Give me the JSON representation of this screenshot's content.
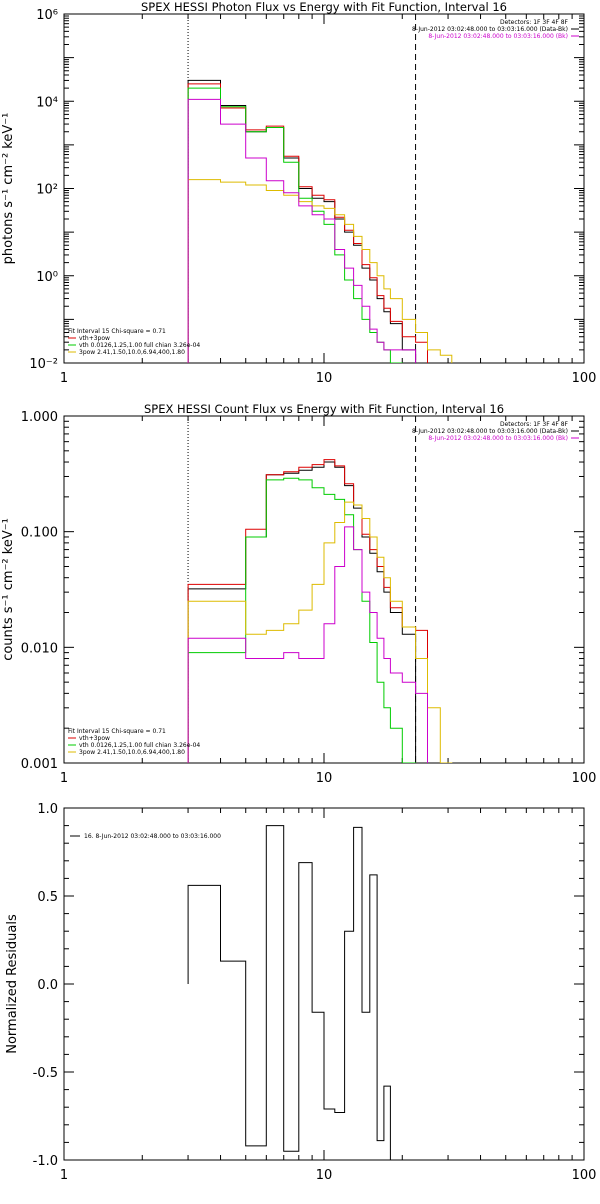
{
  "chart_data": [
    {
      "type": "line",
      "title": "SPEX HESSI Photon Flux vs Energy with Fit Function, Interval 16",
      "xlabel": "",
      "ylabel": "photons s⁻¹ cm⁻² keV⁻¹",
      "xscale": "log",
      "yscale": "log",
      "xlim": [
        1,
        100
      ],
      "ylim": [
        0.01,
        1000000
      ],
      "x_tick_labels": [
        "1",
        "10",
        "100"
      ],
      "y_tick_labels": [
        "10⁻²",
        "10⁰",
        "10²",
        "10⁴",
        "10⁶"
      ],
      "y_tick_values": [
        0.01,
        1,
        100,
        10000,
        1000000
      ],
      "vlines": {
        "dotted": 3,
        "dashed": 22.5
      },
      "legend_top_right": [
        {
          "text": "Detectors: 1F 3F 4F 8F",
          "color": "#000000"
        },
        {
          "text": "8-Jun-2012 03:02:48.000 to 03:03:16.000 (Data-Bk)",
          "color": "#000000"
        },
        {
          "text": "8-Jun-2012 03:02:48.000 to 03:03:16.000 (Bk)",
          "color": "#cc00cc"
        }
      ],
      "legend_bottom_left": [
        {
          "text": "Fit Interval 15    Chi-square = 0.71",
          "color": "#000000"
        },
        {
          "text": "vth+3pow",
          "color": "#dd0000"
        },
        {
          "text": "vth 0.0126,1.25,1.00  full chian 3.26e-04",
          "color": "#00cc00"
        },
        {
          "text": "3pow 2.41,1.50,10.0,6.94,400,1.80",
          "color": "#ddbb00"
        }
      ],
      "bin_edges": [
        3,
        4,
        5,
        6,
        7,
        8,
        9,
        10,
        11,
        12,
        13,
        14,
        15,
        16,
        17,
        18,
        20,
        22.5,
        25,
        28,
        31
      ],
      "series": [
        {
          "name": "Data-Bk",
          "color": "#000000",
          "values": [
            30000,
            8000,
            2000,
            2500,
            500,
            100,
            60,
            50,
            20,
            10,
            5,
            1.5,
            0.8,
            0.3,
            0.15,
            0.08,
            0.02,
            null,
            null,
            null
          ]
        },
        {
          "name": "vth+3pow",
          "color": "#dd0000",
          "values": [
            25000,
            7000,
            2200,
            2700,
            550,
            110,
            70,
            55,
            22,
            11,
            5.5,
            1.8,
            0.9,
            0.35,
            0.18,
            0.09,
            0.04,
            0.03,
            null,
            null
          ]
        },
        {
          "name": "vth",
          "color": "#00cc00",
          "values": [
            20000,
            7500,
            2000,
            2500,
            400,
            60,
            30,
            15,
            3,
            0.8,
            0.3,
            0.1,
            0.05,
            0.03,
            0.02,
            0.01,
            null,
            null,
            null,
            null
          ]
        },
        {
          "name": "3pow",
          "color": "#ddbb00",
          "values": [
            160,
            140,
            120,
            90,
            70,
            50,
            40,
            35,
            25,
            15,
            8,
            4,
            2,
            1,
            0.5,
            0.3,
            0.1,
            0.05,
            0.02,
            0.015
          ]
        },
        {
          "name": "Bk",
          "color": "#cc00cc",
          "values": [
            11000,
            3000,
            500,
            150,
            80,
            40,
            25,
            20,
            4,
            1.5,
            0.6,
            0.2,
            0.06,
            0.03,
            0.02,
            0.02,
            0.02,
            null,
            null,
            null
          ]
        }
      ]
    },
    {
      "type": "line",
      "title": "SPEX HESSI Count Flux vs Energy with Fit Function, Interval 16",
      "xlabel": "",
      "ylabel": "counts s⁻¹ cm⁻² keV⁻¹",
      "xscale": "log",
      "yscale": "log",
      "xlim": [
        1,
        100
      ],
      "ylim": [
        0.001,
        1.0
      ],
      "x_tick_labels": [
        "1",
        "10",
        "100"
      ],
      "y_tick_labels": [
        "0.001",
        "0.010",
        "0.100",
        "1.000"
      ],
      "y_tick_values": [
        0.001,
        0.01,
        0.1,
        1.0
      ],
      "vlines": {
        "dotted": 3,
        "dashed": 22.5
      },
      "legend_top_right": [
        {
          "text": "Detectors: 1F 3F 4F 8F",
          "color": "#000000"
        },
        {
          "text": "8-Jun-2012 03:02:48.000 to 03:03:16.000 (Data-Bk)",
          "color": "#000000"
        },
        {
          "text": "8-Jun-2012 03:02:48.000 to 03:03:16.000 (Bk)",
          "color": "#cc00cc"
        }
      ],
      "legend_bottom_left": [
        {
          "text": "Fit Interval 15    Chi-square = 0.71",
          "color": "#000000"
        },
        {
          "text": "vth+3pow",
          "color": "#dd0000"
        },
        {
          "text": "vth 0.0126,1.25,1.00  full chian 3.26e-04",
          "color": "#00cc00"
        },
        {
          "text": "3pow 2.41,1.50,10.0,6.94,400,1.80",
          "color": "#ddbb00"
        }
      ],
      "bin_edges": [
        3,
        4,
        5,
        6,
        7,
        8,
        9,
        10,
        11,
        12,
        13,
        14,
        15,
        16,
        17,
        18,
        20,
        22.5,
        25,
        28,
        31
      ],
      "series": [
        {
          "name": "Data-Bk",
          "color": "#000000",
          "values": [
            0.032,
            0.032,
            0.09,
            0.31,
            0.32,
            0.34,
            0.36,
            0.4,
            0.36,
            0.25,
            0.16,
            0.09,
            0.065,
            0.045,
            0.03,
            0.02,
            0.013,
            0.001,
            null,
            null
          ]
        },
        {
          "name": "vth+3pow",
          "color": "#dd0000",
          "values": [
            0.035,
            0.035,
            0.105,
            0.31,
            0.33,
            0.36,
            0.38,
            0.42,
            0.37,
            0.26,
            0.17,
            0.095,
            0.07,
            0.05,
            0.033,
            0.022,
            0.015,
            0.014,
            null,
            null
          ]
        },
        {
          "name": "vth",
          "color": "#00cc00",
          "values": [
            0.009,
            0.009,
            0.09,
            0.28,
            0.29,
            0.28,
            0.24,
            0.21,
            0.19,
            0.14,
            0.07,
            0.025,
            0.011,
            0.005,
            0.003,
            0.002,
            0.001,
            null,
            null,
            null
          ]
        },
        {
          "name": "3pow",
          "color": "#ddbb00",
          "values": [
            0.025,
            0.025,
            0.013,
            0.014,
            0.016,
            0.021,
            0.035,
            0.08,
            0.12,
            0.18,
            0.17,
            0.13,
            0.09,
            0.06,
            0.04,
            0.025,
            0.015,
            0.008,
            0.003,
            0.001
          ]
        },
        {
          "name": "Bk",
          "color": "#cc00cc",
          "values": [
            0.012,
            0.012,
            0.008,
            0.008,
            0.009,
            0.008,
            0.008,
            0.016,
            0.05,
            0.11,
            0.07,
            0.03,
            0.02,
            0.012,
            0.008,
            0.006,
            0.005,
            0.004,
            null,
            null
          ]
        }
      ]
    },
    {
      "type": "line",
      "title": "",
      "xlabel": "",
      "ylabel": "Normalized Residuals",
      "xscale": "log",
      "yscale": "linear",
      "xlim": [
        1,
        100
      ],
      "ylim": [
        -1.0,
        1.0
      ],
      "x_tick_labels": [
        "1",
        "10",
        "100"
      ],
      "y_tick_labels": [
        "-1.0",
        "-0.5",
        "0.0",
        "0.5",
        "1.0"
      ],
      "y_tick_values": [
        -1.0,
        -0.5,
        0.0,
        0.5,
        1.0
      ],
      "legend_top_left": [
        {
          "text": "16.  8-Jun-2012 03:02:48.000 to 03:03:16.000",
          "color": "#000000"
        }
      ],
      "bin_edges": [
        3,
        4,
        5,
        6,
        7,
        8,
        9,
        10,
        11,
        12,
        13,
        14,
        15,
        16,
        17,
        18,
        20,
        22.5
      ],
      "series": [
        {
          "name": "16",
          "color": "#000000",
          "values": [
            0.56,
            0.13,
            -0.92,
            0.9,
            -0.95,
            0.69,
            -0.16,
            -0.71,
            -0.73,
            0.3,
            0.89,
            -0.16,
            0.62,
            -0.89,
            -0.58,
            null,
            null
          ]
        }
      ]
    }
  ]
}
